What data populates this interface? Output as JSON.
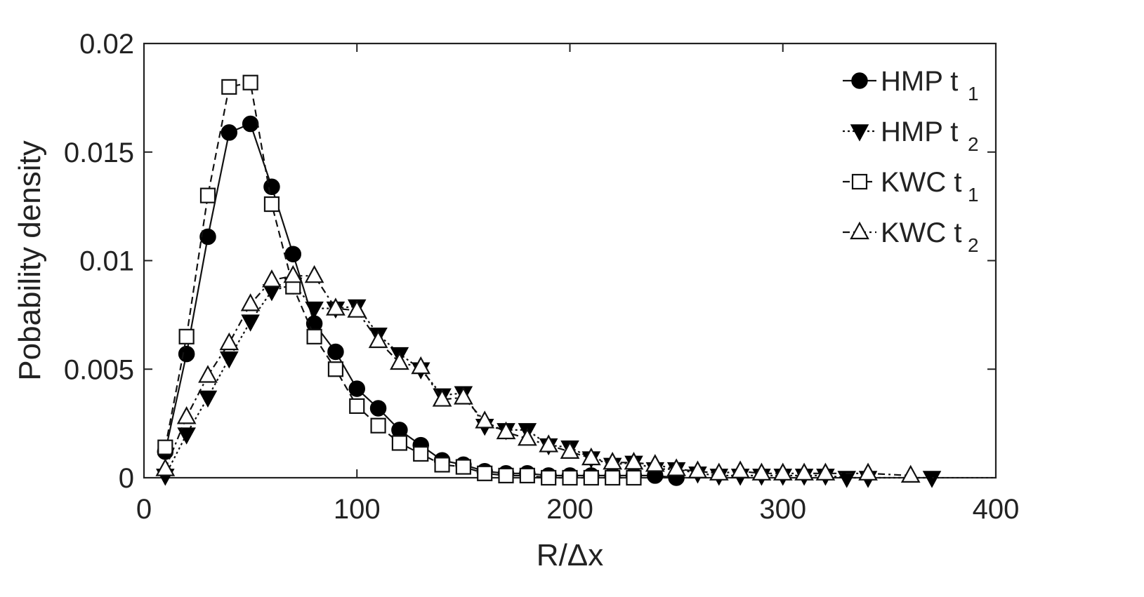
{
  "chart_data": {
    "type": "line",
    "title": "",
    "xlabel": "R/Δx",
    "ylabel": "Pobability density",
    "xlim": [
      0,
      400
    ],
    "ylim": [
      0,
      0.02
    ],
    "xticks": [
      0,
      100,
      200,
      300,
      400
    ],
    "yticks": [
      0,
      0.005,
      0.01,
      0.015,
      0.02
    ],
    "xtick_labels": [
      "0",
      "100",
      "200",
      "300",
      "400"
    ],
    "ytick_labels": [
      "0",
      "0.005",
      "0.01",
      "0.015",
      "0.02"
    ],
    "grid": false,
    "legend_position": "top-right",
    "series": [
      {
        "name": "HMP t",
        "subscript": "1",
        "marker": "filled-circle",
        "line": "solid",
        "x": [
          10,
          20,
          30,
          40,
          50,
          60,
          70,
          80,
          90,
          100,
          110,
          120,
          130,
          140,
          150,
          160,
          170,
          180,
          190,
          200,
          210,
          220,
          230,
          240,
          250
        ],
        "y": [
          0.0012,
          0.0057,
          0.0111,
          0.0159,
          0.0163,
          0.0134,
          0.0103,
          0.0071,
          0.0058,
          0.0041,
          0.0032,
          0.0022,
          0.0015,
          0.0008,
          0.0006,
          0.0003,
          0.0002,
          0.0002,
          0.0001,
          0.0001,
          0.0001,
          0.0001,
          0.0001,
          0.0001,
          0.0
        ]
      },
      {
        "name": "HMP t",
        "subscript": "2",
        "marker": "filled-triangle-down",
        "line": "dotted",
        "x": [
          10,
          20,
          30,
          40,
          50,
          60,
          70,
          80,
          90,
          100,
          110,
          120,
          130,
          140,
          150,
          160,
          170,
          180,
          190,
          200,
          210,
          220,
          230,
          240,
          250,
          260,
          270,
          280,
          290,
          300,
          310,
          320,
          330,
          340,
          370
        ],
        "y": [
          0.0001,
          0.002,
          0.0037,
          0.0055,
          0.0072,
          0.0086,
          0.0089,
          0.0078,
          0.0078,
          0.0079,
          0.0066,
          0.0057,
          0.005,
          0.0038,
          0.0039,
          0.0024,
          0.0022,
          0.0022,
          0.0015,
          0.0014,
          0.0009,
          0.0006,
          0.0007,
          0.0004,
          0.0004,
          0.0002,
          0.0001,
          0.0001,
          0.0001,
          0.0001,
          0.0001,
          0.0001,
          0.0,
          0.0,
          0.0
        ]
      },
      {
        "name": "KWC t",
        "subscript": "1",
        "marker": "open-square",
        "line": "dashed",
        "x": [
          10,
          20,
          30,
          40,
          50,
          60,
          70,
          80,
          90,
          100,
          110,
          120,
          130,
          140,
          150,
          160,
          170,
          180,
          190,
          200,
          210,
          220,
          230
        ],
        "y": [
          0.0014,
          0.0065,
          0.013,
          0.018,
          0.0182,
          0.0126,
          0.0088,
          0.0065,
          0.005,
          0.0033,
          0.0024,
          0.0016,
          0.0011,
          0.0006,
          0.0005,
          0.0002,
          0.0001,
          0.0001,
          0.0,
          0.0,
          0.0,
          0.0,
          0.0
        ]
      },
      {
        "name": "KWC t",
        "subscript": "2",
        "marker": "open-triangle-up",
        "line": "dash-dot",
        "x": [
          10,
          20,
          30,
          40,
          50,
          60,
          70,
          80,
          90,
          100,
          110,
          120,
          130,
          140,
          150,
          160,
          170,
          180,
          190,
          200,
          210,
          220,
          230,
          240,
          250,
          260,
          270,
          280,
          290,
          300,
          310,
          320,
          340,
          360
        ],
        "y": [
          0.0004,
          0.0028,
          0.0047,
          0.0062,
          0.008,
          0.0091,
          0.0093,
          0.0093,
          0.0078,
          0.0077,
          0.0063,
          0.0053,
          0.0051,
          0.0036,
          0.0037,
          0.0026,
          0.0021,
          0.0018,
          0.0015,
          0.0012,
          0.0009,
          0.0007,
          0.0007,
          0.0006,
          0.0004,
          0.0003,
          0.0002,
          0.0003,
          0.0002,
          0.0002,
          0.0002,
          0.0002,
          0.0002,
          0.0001
        ]
      }
    ]
  }
}
